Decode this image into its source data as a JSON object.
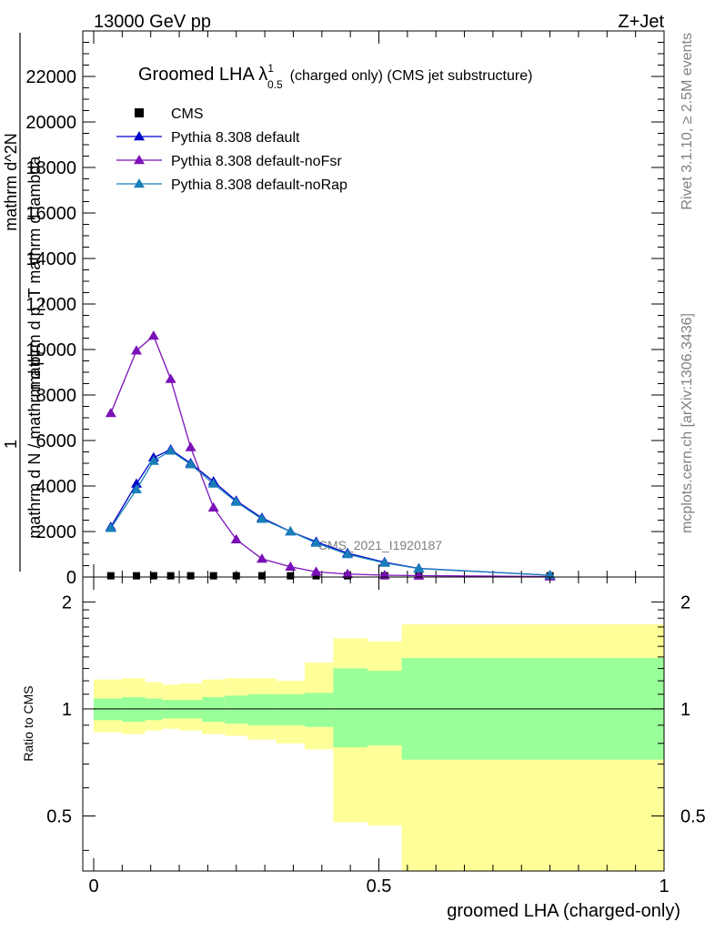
{
  "header": {
    "left_label": "13000 GeV pp",
    "right_label": "Z+Jet"
  },
  "side_labels": {
    "rivet": "Rivet 3.1.10, ≥ 2.5M events",
    "mcplots": "mcplots.cern.ch [arXiv:1306.3436]"
  },
  "watermark": "CMS_2021_I1920187",
  "chart_data": [
    {
      "type": "line",
      "title": "Groomed LHA λ",
      "title_super": "1",
      "title_sub": "0.5",
      "title_suffix": "(charged only) (CMS jet substructure)",
      "ylabel_parts": [
        "1",
        "mathrm d N / mathrm d p",
        "T",
        "mathrm d^2N",
        "mathrm d p_T mathrm d lambda"
      ],
      "xlim": [
        0,
        1
      ],
      "ylim": [
        0,
        24000
      ],
      "yticks": [
        0,
        2000,
        4000,
        6000,
        8000,
        10000,
        12000,
        14000,
        16000,
        18000,
        20000,
        22000
      ],
      "ytick_labels": [
        "0",
        "2000",
        "4000",
        "6000",
        "8000",
        "10000",
        "12000",
        "14000",
        "16000",
        "18000",
        "20000",
        "22000"
      ],
      "legend_position": "top-left",
      "x": [
        0.03,
        0.075,
        0.105,
        0.135,
        0.17,
        0.21,
        0.25,
        0.295,
        0.345,
        0.39,
        0.445,
        0.51,
        0.57,
        0.8
      ],
      "series": [
        {
          "name": "CMS",
          "color": "#000000",
          "marker": "square",
          "values": [
            55,
            55,
            55,
            55,
            55,
            55,
            55,
            55,
            55,
            55,
            55,
            55,
            55,
            55
          ]
        },
        {
          "name": "Pythia 8.308 default",
          "color": "#0000cc",
          "marker": "triangle",
          "values": [
            2200,
            4100,
            5250,
            5600,
            5000,
            4200,
            3350,
            2600,
            2000,
            1550,
            1050,
            650,
            380,
            80
          ]
        },
        {
          "name": "Pythia 8.308 default-noFsr",
          "color": "#7b10b8",
          "marker": "triangle",
          "values": [
            7200,
            9950,
            10600,
            8700,
            5700,
            3050,
            1650,
            800,
            450,
            230,
            130,
            80,
            60,
            20
          ]
        },
        {
          "name": "Pythia 8.308 default-noRap",
          "color": "#1a7fb8",
          "marker": "triangle",
          "values": [
            2150,
            3850,
            5100,
            5550,
            4950,
            4100,
            3300,
            2550,
            2000,
            1500,
            1000,
            620,
            370,
            80
          ]
        }
      ]
    },
    {
      "type": "area",
      "ylabel": "Ratio to CMS",
      "xlabel": "groomed LHA (charged-only)",
      "xlim": [
        0,
        1
      ],
      "ylim": [
        0.35,
        2.35
      ],
      "log_y": true,
      "yticks": [
        0.5,
        1,
        2
      ],
      "ytick_labels": [
        "0.5",
        "1",
        "2"
      ],
      "xticks": [
        0,
        0.5,
        1
      ],
      "xtick_labels": [
        "0",
        "0.5",
        "1"
      ],
      "bin_edges": [
        0,
        0.05,
        0.09,
        0.12,
        0.15,
        0.19,
        0.23,
        0.27,
        0.32,
        0.37,
        0.42,
        0.48,
        0.54,
        1.0
      ],
      "band_inner": {
        "name": "stat",
        "color": "#99ff99",
        "lower": [
          0.93,
          0.92,
          0.93,
          0.94,
          0.94,
          0.92,
          0.91,
          0.9,
          0.9,
          0.89,
          0.78,
          0.79,
          0.72
        ],
        "upper": [
          1.07,
          1.08,
          1.07,
          1.06,
          1.06,
          1.08,
          1.09,
          1.1,
          1.1,
          1.11,
          1.3,
          1.28,
          1.39
        ]
      },
      "band_outer": {
        "name": "total",
        "color": "#ffff99",
        "lower": [
          0.86,
          0.85,
          0.87,
          0.88,
          0.87,
          0.85,
          0.84,
          0.82,
          0.8,
          0.77,
          0.48,
          0.47,
          0.35
        ],
        "upper": [
          1.21,
          1.22,
          1.19,
          1.17,
          1.18,
          1.21,
          1.22,
          1.22,
          1.2,
          1.35,
          1.58,
          1.55,
          1.73
        ]
      },
      "reference_line": 1
    }
  ]
}
